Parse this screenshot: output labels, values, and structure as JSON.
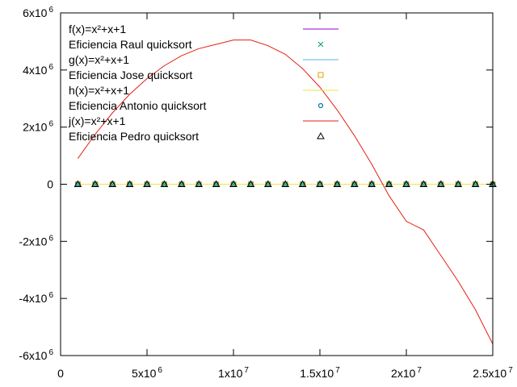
{
  "chart_data": {
    "type": "scatter",
    "title": "",
    "xlabel": "",
    "ylabel": "",
    "xlim": [
      0,
      25000000
    ],
    "ylim": [
      -6000000,
      6000000
    ],
    "grid": false,
    "legend_position": "top-right",
    "x_ticks": [
      {
        "value": 0,
        "base": "0",
        "exp": ""
      },
      {
        "value": 5000000,
        "base": "5x10",
        "exp": "6"
      },
      {
        "value": 10000000,
        "base": "1x10",
        "exp": "7"
      },
      {
        "value": 15000000,
        "base": "1.5x10",
        "exp": "7"
      },
      {
        "value": 20000000,
        "base": "2x10",
        "exp": "7"
      },
      {
        "value": 25000000,
        "base": "2.5x10",
        "exp": "7"
      }
    ],
    "y_ticks": [
      {
        "value": 6000000,
        "base": "6x10",
        "exp": "6"
      },
      {
        "value": 4000000,
        "base": "4x10",
        "exp": "6"
      },
      {
        "value": 2000000,
        "base": "2x10",
        "exp": "6"
      },
      {
        "value": 0,
        "base": "0",
        "exp": ""
      },
      {
        "value": -2000000,
        "base": "-2x10",
        "exp": "6"
      },
      {
        "value": -4000000,
        "base": "-4x10",
        "exp": "6"
      },
      {
        "value": -6000000,
        "base": "-6x10",
        "exp": "6"
      }
    ],
    "series": [
      {
        "name": "f(x)=x²+x+1",
        "kind": "line",
        "color": "#9400d3",
        "x": [
          1000000,
          25000000
        ],
        "y": [
          0,
          0
        ]
      },
      {
        "name": "Eficiencia Raul quicksort",
        "kind": "points",
        "marker": "x",
        "color": "#009e73",
        "x": [
          1000000,
          2000000,
          3000000,
          4000000,
          5000000,
          6000000,
          7000000,
          8000000,
          9000000,
          10000000,
          11000000,
          12000000,
          13000000,
          14000000,
          15000000,
          16000000,
          17000000,
          18000000,
          19000000,
          20000000,
          21000000,
          22000000,
          23000000,
          24000000,
          25000000
        ],
        "y": [
          0,
          0,
          0,
          0,
          0,
          0,
          0,
          0,
          0,
          0,
          0,
          0,
          0,
          0,
          0,
          0,
          0,
          0,
          0,
          0,
          0,
          0,
          0,
          0,
          0
        ]
      },
      {
        "name": "g(x)=x²+x+1",
        "kind": "line",
        "color": "#56b4e9",
        "x": [
          1000000,
          25000000
        ],
        "y": [
          0,
          0
        ]
      },
      {
        "name": "Eficiencia Jose quicksort",
        "kind": "points",
        "marker": "square",
        "color": "#e69f00",
        "x": [
          1000000,
          2000000,
          3000000,
          4000000,
          5000000,
          6000000,
          7000000,
          8000000,
          9000000,
          10000000,
          11000000,
          12000000,
          13000000,
          14000000,
          15000000,
          16000000,
          17000000,
          18000000,
          19000000,
          20000000,
          21000000,
          22000000,
          23000000,
          24000000,
          25000000
        ],
        "y": [
          0,
          0,
          0,
          0,
          0,
          0,
          0,
          0,
          0,
          0,
          0,
          0,
          0,
          0,
          0,
          0,
          0,
          0,
          0,
          0,
          0,
          0,
          0,
          0,
          0
        ]
      },
      {
        "name": "h(x)=x²+x+1",
        "kind": "line",
        "color": "#f0e442",
        "x": [
          1000000,
          25000000
        ],
        "y": [
          0,
          0
        ]
      },
      {
        "name": "Eficiencia Antonio quicksort",
        "kind": "points",
        "marker": "circle",
        "color": "#0072b2",
        "x": [
          1000000,
          2000000,
          3000000,
          4000000,
          5000000,
          6000000,
          7000000,
          8000000,
          9000000,
          10000000,
          11000000,
          12000000,
          13000000,
          14000000,
          15000000,
          16000000,
          17000000,
          18000000,
          19000000,
          20000000,
          21000000,
          22000000,
          23000000,
          24000000,
          25000000
        ],
        "y": [
          0,
          0,
          0,
          0,
          0,
          0,
          0,
          0,
          0,
          0,
          0,
          0,
          0,
          0,
          0,
          0,
          0,
          0,
          0,
          0,
          0,
          0,
          0,
          0,
          0
        ]
      },
      {
        "name": "j(x)=x²+x+1",
        "kind": "line",
        "color": "#e51e10",
        "x": [
          1000000,
          2000000,
          3000000,
          4000000,
          5000000,
          6000000,
          7000000,
          8000000,
          9000000,
          10000000,
          11000000,
          12000000,
          13000000,
          14000000,
          15000000,
          16000000,
          17000000,
          18000000,
          19000000,
          20000000,
          21000000,
          22000000,
          23000000,
          24000000,
          25000000
        ],
        "y": [
          900000,
          1750000,
          2500000,
          3150000,
          3700000,
          4150000,
          4500000,
          4750000,
          4900000,
          5050000,
          5050000,
          4850000,
          4550000,
          4050000,
          3400000,
          2600000,
          1700000,
          700000,
          -400000,
          -1300000,
          -1600000,
          -2500000,
          -3400000,
          -4400000,
          -5600000
        ]
      },
      {
        "name": "Eficiencia Pedro quicksort",
        "kind": "points",
        "marker": "triangle",
        "color": "#000000",
        "x": [
          1000000,
          2000000,
          3000000,
          4000000,
          5000000,
          6000000,
          7000000,
          8000000,
          9000000,
          10000000,
          11000000,
          12000000,
          13000000,
          14000000,
          15000000,
          16000000,
          17000000,
          18000000,
          19000000,
          20000000,
          21000000,
          22000000,
          23000000,
          24000000,
          25000000
        ],
        "y": [
          0,
          0,
          0,
          0,
          0,
          0,
          0,
          0,
          0,
          0,
          0,
          0,
          0,
          0,
          0,
          0,
          0,
          0,
          0,
          0,
          0,
          0,
          0,
          0,
          0
        ]
      }
    ]
  }
}
